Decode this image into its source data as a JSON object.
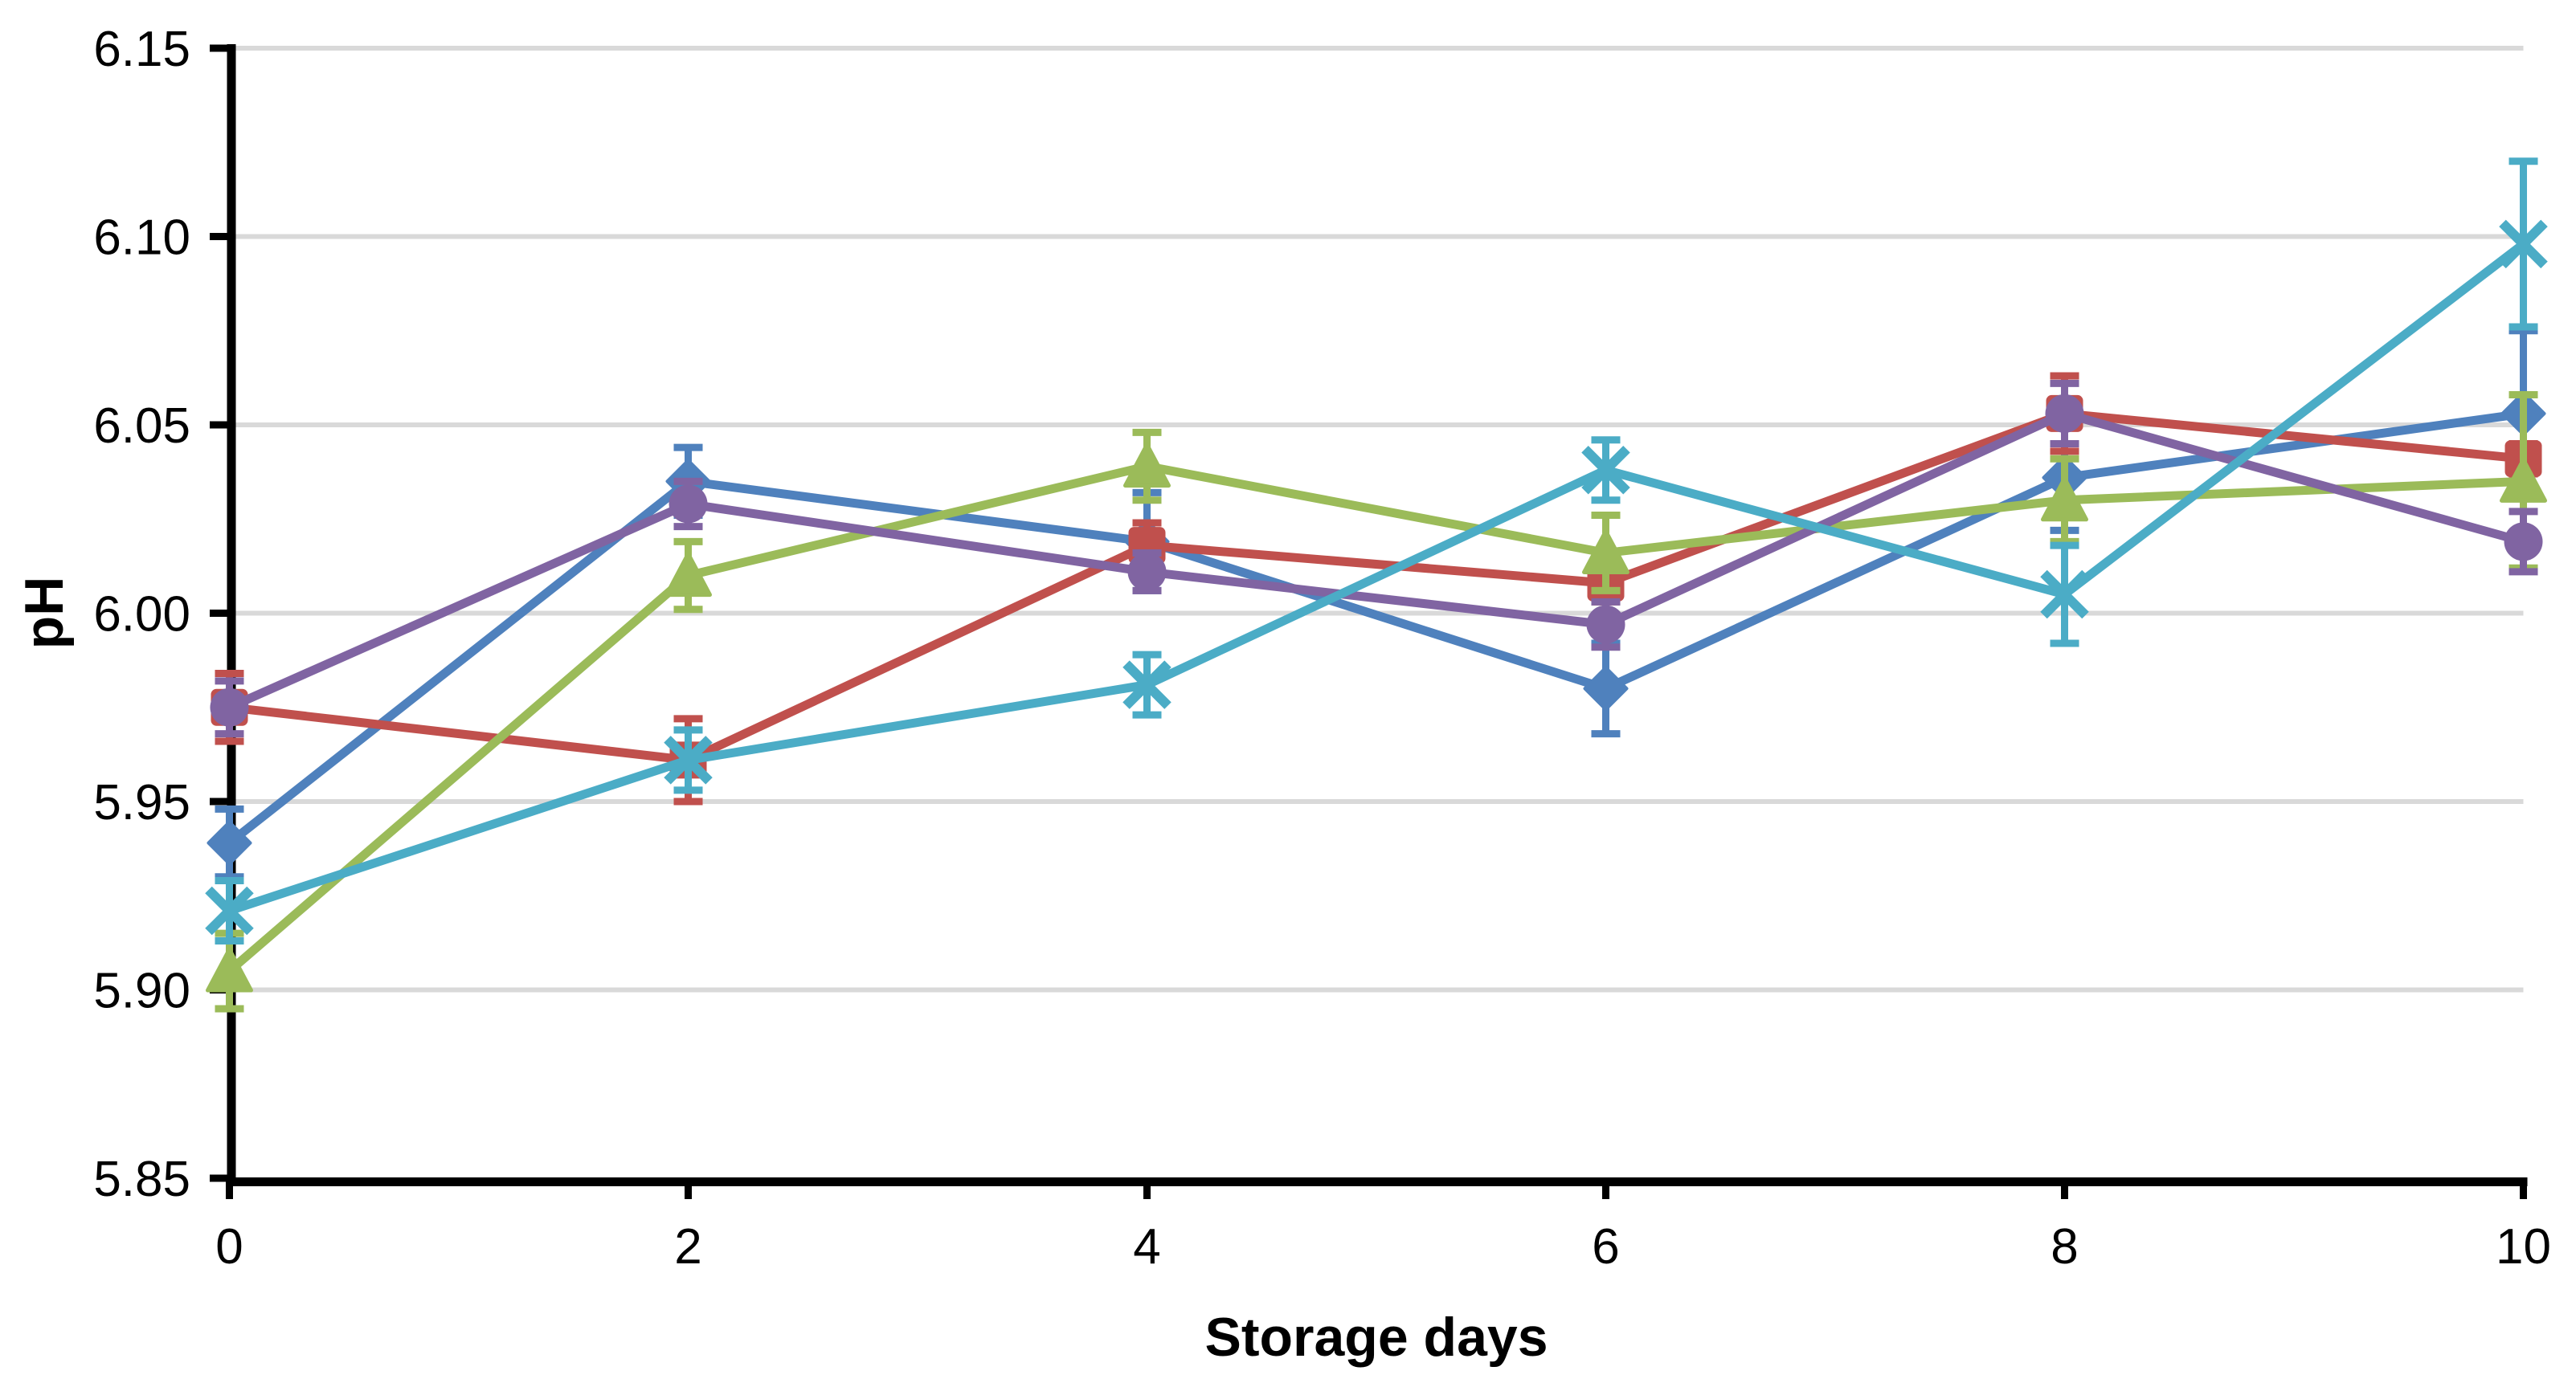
{
  "page": {
    "background_color": "#FFFFFF",
    "description": "Line chart of pH versus storage days with five series and error bars"
  },
  "chart_data": {
    "type": "line",
    "title": "",
    "xlabel": "Storage days",
    "ylabel": "pH",
    "xlim": [
      0,
      10
    ],
    "ylim": [
      5.85,
      6.15
    ],
    "x": [
      0,
      2,
      4,
      6,
      8,
      10
    ],
    "x_tick_labels": [
      "0",
      "2",
      "4",
      "6",
      "8",
      "10"
    ],
    "y_ticks": [
      5.85,
      5.9,
      5.95,
      6.0,
      6.05,
      6.1,
      6.15
    ],
    "y_tick_labels": [
      "5.85",
      "5.90",
      "5.95",
      "6.00",
      "6.05",
      "6.10",
      "6.15"
    ],
    "grid": "horizontal",
    "legend": "none",
    "axis_color": "#000000",
    "gridline_color": "#D9D9D9",
    "series": [
      {
        "name": "blue-diamond",
        "marker": "diamond",
        "color": "#4F81BD",
        "values": [
          5.939,
          6.035,
          6.019,
          5.98,
          6.036,
          6.053
        ],
        "errors": [
          0.009,
          0.009,
          0.013,
          0.012,
          0.014,
          0.022
        ]
      },
      {
        "name": "red-square",
        "marker": "square",
        "color": "#C0504D",
        "values": [
          5.975,
          5.961,
          6.018,
          6.008,
          6.053,
          6.041
        ],
        "errors": [
          0.009,
          0.011,
          0.006,
          0.005,
          0.01,
          0.004
        ]
      },
      {
        "name": "green-triangle",
        "marker": "triangle",
        "color": "#9BBB59",
        "values": [
          5.905,
          6.01,
          6.039,
          6.016,
          6.03,
          6.035
        ],
        "errors": [
          0.01,
          0.009,
          0.009,
          0.01,
          0.011,
          0.023
        ]
      },
      {
        "name": "purple-circle",
        "marker": "circle",
        "color": "#8064A2",
        "values": [
          5.975,
          6.029,
          6.011,
          5.997,
          6.053,
          6.019
        ],
        "errors": [
          0.007,
          0.006,
          0.005,
          0.006,
          0.008,
          0.008
        ]
      },
      {
        "name": "cyan-x",
        "marker": "x",
        "color": "#4BACC6",
        "values": [
          5.921,
          5.961,
          5.981,
          6.038,
          6.005,
          6.098
        ],
        "errors": [
          0.008,
          0.008,
          0.008,
          0.008,
          0.013,
          0.022
        ]
      }
    ]
  }
}
